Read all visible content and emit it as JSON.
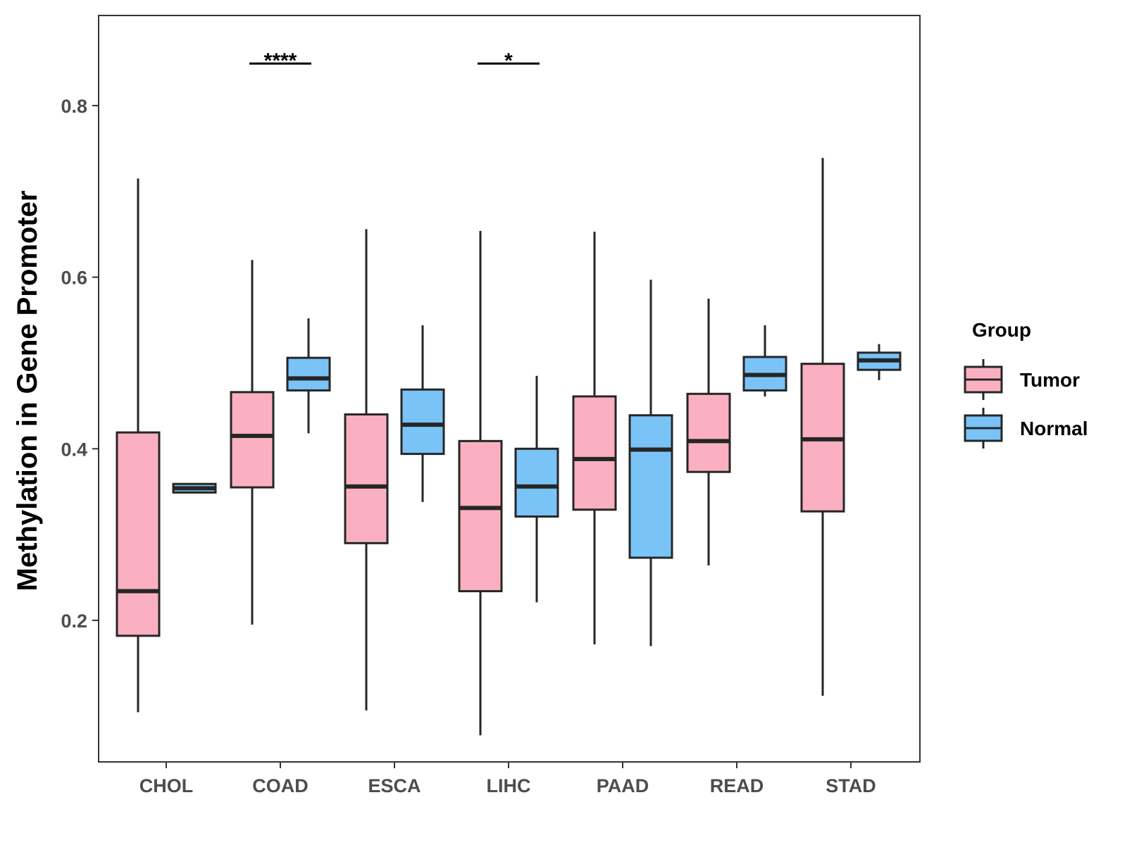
{
  "chart_data": {
    "type": "boxplot",
    "title": "",
    "xlabel": "",
    "ylabel": "Methylation in Gene Promoter",
    "ylim": [
      0.035,
      0.905
    ],
    "yticks": [
      0.2,
      0.4,
      0.6,
      0.8
    ],
    "ytick_labels": [
      "0.2",
      "0.4",
      "0.6",
      "0.8"
    ],
    "categories": [
      "CHOL",
      "COAD",
      "ESCA",
      "LIHC",
      "PAAD",
      "READ",
      "STAD"
    ],
    "legend": {
      "title": "Group",
      "position": "right",
      "entries": [
        {
          "name": "Tumor",
          "color": "#FBB0C1"
        },
        {
          "name": "Normal",
          "color": "#7AC3F7"
        }
      ]
    },
    "series": [
      {
        "name": "Tumor",
        "color": "#FBB0C1",
        "boxes": [
          {
            "min": 0.093,
            "q1": 0.182,
            "median": 0.234,
            "q3": 0.419,
            "max": 0.715
          },
          {
            "min": 0.195,
            "q1": 0.355,
            "median": 0.415,
            "q3": 0.466,
            "max": 0.62
          },
          {
            "min": 0.095,
            "q1": 0.29,
            "median": 0.356,
            "q3": 0.44,
            "max": 0.656
          },
          {
            "min": 0.066,
            "q1": 0.234,
            "median": 0.331,
            "q3": 0.409,
            "max": 0.654
          },
          {
            "min": 0.172,
            "q1": 0.329,
            "median": 0.388,
            "q3": 0.461,
            "max": 0.653
          },
          {
            "min": 0.264,
            "q1": 0.373,
            "median": 0.409,
            "q3": 0.464,
            "max": 0.575
          },
          {
            "min": 0.112,
            "q1": 0.327,
            "median": 0.411,
            "q3": 0.499,
            "max": 0.739
          }
        ]
      },
      {
        "name": "Normal",
        "color": "#7AC3F7",
        "boxes": [
          {
            "min": 0.349,
            "q1": 0.349,
            "median": 0.354,
            "q3": 0.359,
            "max": 0.359
          },
          {
            "min": 0.418,
            "q1": 0.468,
            "median": 0.482,
            "q3": 0.506,
            "max": 0.552
          },
          {
            "min": 0.338,
            "q1": 0.394,
            "median": 0.428,
            "q3": 0.469,
            "max": 0.544
          },
          {
            "min": 0.221,
            "q1": 0.321,
            "median": 0.356,
            "q3": 0.4,
            "max": 0.485
          },
          {
            "min": 0.17,
            "q1": 0.273,
            "median": 0.399,
            "q3": 0.439,
            "max": 0.597
          },
          {
            "min": 0.461,
            "q1": 0.468,
            "median": 0.486,
            "q3": 0.507,
            "max": 0.544
          },
          {
            "min": 0.48,
            "q1": 0.492,
            "median": 0.503,
            "q3": 0.512,
            "max": 0.522
          }
        ]
      }
    ],
    "annotations": [
      {
        "category": "COAD",
        "label": "****",
        "y": 0.849
      },
      {
        "category": "LIHC",
        "label": "*",
        "y": 0.849
      }
    ]
  }
}
